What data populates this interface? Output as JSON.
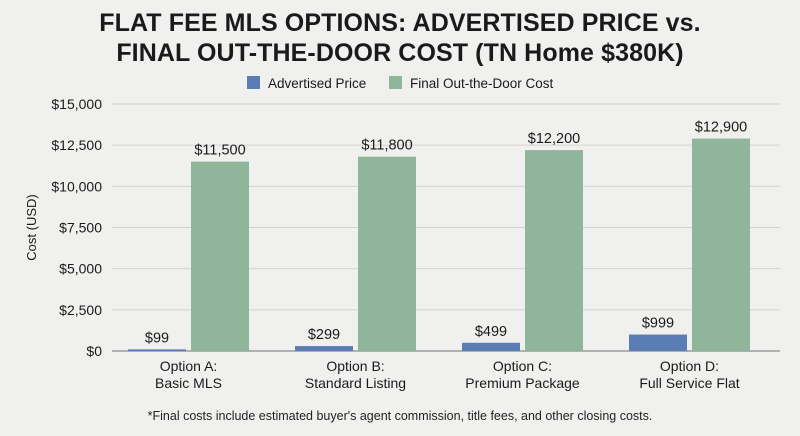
{
  "chart_data": {
    "type": "bar",
    "title_lines": [
      "FLAT FEE MLS OPTIONS: ADVERTISED PRICE vs.",
      "FINAL OUT-THE-DOOR COST (TN Home $380K)"
    ],
    "ylabel": "Cost (USD)",
    "ylim": [
      0,
      15000
    ],
    "yticks": [
      0,
      2500,
      5000,
      7500,
      10000,
      12500,
      15000
    ],
    "ytick_labels": [
      "$0",
      "$2,500",
      "$5,000",
      "$7,500",
      "$10,000",
      "$12,500",
      "$15,000"
    ],
    "grid": true,
    "legend_position": "top-center",
    "categories": [
      [
        "Option A:",
        "Basic MLS"
      ],
      [
        "Option B:",
        "Standard Listing"
      ],
      [
        "Option C:",
        "Premium Package"
      ],
      [
        "Option D:",
        "Full Service Flat"
      ]
    ],
    "series": [
      {
        "name": "Advertised Price",
        "color": "#5a7db5",
        "values": [
          99,
          299,
          499,
          999
        ],
        "labels": [
          "$99",
          "$299",
          "$499",
          "$999"
        ]
      },
      {
        "name": "Final Out-the-Door Cost",
        "color": "#8fb59a",
        "values": [
          11500,
          11800,
          12200,
          12900
        ],
        "labels": [
          "$11,500",
          "$11,800",
          "$12,200",
          "$12,900"
        ]
      }
    ],
    "footnote": "*Final costs include estimated buyer's agent commission, title fees, and other closing costs."
  }
}
